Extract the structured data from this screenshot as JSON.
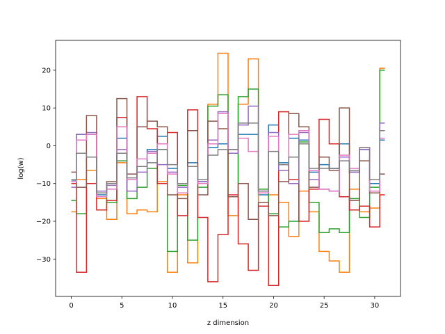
{
  "chart_data": {
    "type": "line",
    "step": "mid",
    "xlabel": "z dimension",
    "ylabel": "log(w)",
    "xlim": [
      -1.55,
      32.55
    ],
    "ylim": [
      -39.9,
      27.9
    ],
    "xticks": [
      0,
      5,
      10,
      15,
      20,
      25,
      30
    ],
    "yticks": [
      -30,
      -20,
      -10,
      0,
      10,
      20
    ],
    "grid": false,
    "legend": "none",
    "x": [
      0,
      1,
      2,
      3,
      4,
      5,
      6,
      7,
      8,
      9,
      10,
      11,
      12,
      13,
      14,
      15,
      16,
      17,
      18,
      19,
      20,
      21,
      22,
      23,
      24,
      25,
      26,
      27,
      28,
      29,
      30,
      31
    ],
    "series": [
      {
        "color": "#1f77b4",
        "values": [
          -9.1,
          3.0,
          3.0,
          -13.0,
          -10.0,
          2.0,
          -9.0,
          -5.5,
          -1.0,
          2.5,
          -6.0,
          -10.0,
          -4.5,
          -9.5,
          -0.5,
          0.5,
          -1.0,
          3.0,
          3.0,
          -13.0,
          5.5,
          -4.5,
          2.0,
          1.5,
          -7.0,
          -5.0,
          -6.0,
          0.5,
          -7.0,
          -1.0,
          -10.0,
          1.5
        ]
      },
      {
        "color": "#ff7f0e",
        "values": [
          -17.5,
          -9.0,
          -6.5,
          -14.0,
          -19.5,
          -4.5,
          -18.0,
          -17.0,
          -17.5,
          -9.5,
          -33.5,
          -13.0,
          -31.0,
          -10.0,
          11.0,
          24.5,
          -18.5,
          11.0,
          23.0,
          -16.0,
          -13.0,
          -15.0,
          -24.0,
          -12.0,
          -17.5,
          -28.0,
          -30.5,
          -33.5,
          -11.5,
          -17.5,
          -16.5,
          20.5
        ]
      },
      {
        "color": "#2ca02c",
        "values": [
          -14.5,
          -18.0,
          -3.0,
          -12.5,
          -15.0,
          -4.0,
          -14.0,
          -11.0,
          -6.0,
          -1.0,
          -28.0,
          -10.5,
          -25.0,
          -11.0,
          10.5,
          13.5,
          -13.5,
          13.0,
          15.0,
          -11.5,
          -18.0,
          -21.5,
          -20.0,
          1.0,
          -15.0,
          -23.0,
          -22.0,
          -23.0,
          -14.0,
          -19.0,
          -11.0,
          20.0
        ]
      },
      {
        "color": "#d62728",
        "values": [
          -10.0,
          -33.5,
          -10.0,
          -17.0,
          -14.5,
          7.5,
          -9.0,
          13.0,
          4.5,
          -10.0,
          3.5,
          -18.5,
          9.5,
          -19.0,
          -36.0,
          -23.5,
          -13.0,
          -26.0,
          -33.0,
          -16.0,
          -37.0,
          9.0,
          -9.0,
          -20.0,
          -11.5,
          7.0,
          0.5,
          -13.5,
          -17.0,
          -16.0,
          -21.5,
          -13.0
        ]
      },
      {
        "color": "#9467bd",
        "values": [
          -11.0,
          3.0,
          3.5,
          -12.0,
          -10.5,
          -1.0,
          -12.0,
          -7.0,
          -1.5,
          -5.0,
          -7.0,
          -11.0,
          -5.5,
          -9.5,
          1.5,
          9.0,
          -2.0,
          5.5,
          10.5,
          -12.0,
          3.5,
          -6.5,
          -10.0,
          3.5,
          -9.0,
          -11.5,
          -12.0,
          -3.0,
          -7.0,
          -1.0,
          -12.5,
          6.0
        ]
      },
      {
        "color": "#8c564b",
        "values": [
          -7.0,
          -11.0,
          8.0,
          -12.5,
          -9.5,
          12.5,
          -7.5,
          5.0,
          6.5,
          5.0,
          -13.0,
          -14.0,
          4.0,
          -13.0,
          6.5,
          4.5,
          -13.5,
          -10.0,
          -19.5,
          -15.0,
          -18.5,
          -9.5,
          8.5,
          5.0,
          -11.0,
          -3.0,
          -6.5,
          10.0,
          -14.5,
          -4.0,
          -12.5,
          -7.5
        ]
      },
      {
        "color": "#e377c2",
        "values": [
          -9.5,
          1.5,
          3.0,
          -13.5,
          -11.5,
          5.0,
          -9.0,
          -3.5,
          -2.0,
          0.5,
          -7.5,
          -12.5,
          -5.5,
          -10.0,
          0.5,
          8.5,
          -1.0,
          2.0,
          -1.5,
          -12.5,
          2.5,
          -5.0,
          3.0,
          4.0,
          -6.5,
          -11.5,
          -12.0,
          -2.5,
          -6.0,
          -0.5,
          -12.0,
          2.0
        ]
      },
      {
        "color": "#7f7f7f",
        "values": [
          -9.0,
          -2.0,
          -3.0,
          -12.5,
          -10.0,
          -2.0,
          -8.5,
          -5.5,
          -4.5,
          -1.0,
          -5.0,
          -10.0,
          -5.5,
          -9.0,
          -2.5,
          -1.0,
          -1.0,
          6.0,
          6.0,
          -12.0,
          -1.5,
          -5.0,
          -3.0,
          0.5,
          -6.0,
          -6.0,
          -6.0,
          -4.0,
          -6.5,
          -0.5,
          -9.0,
          4.0
        ]
      }
    ]
  }
}
